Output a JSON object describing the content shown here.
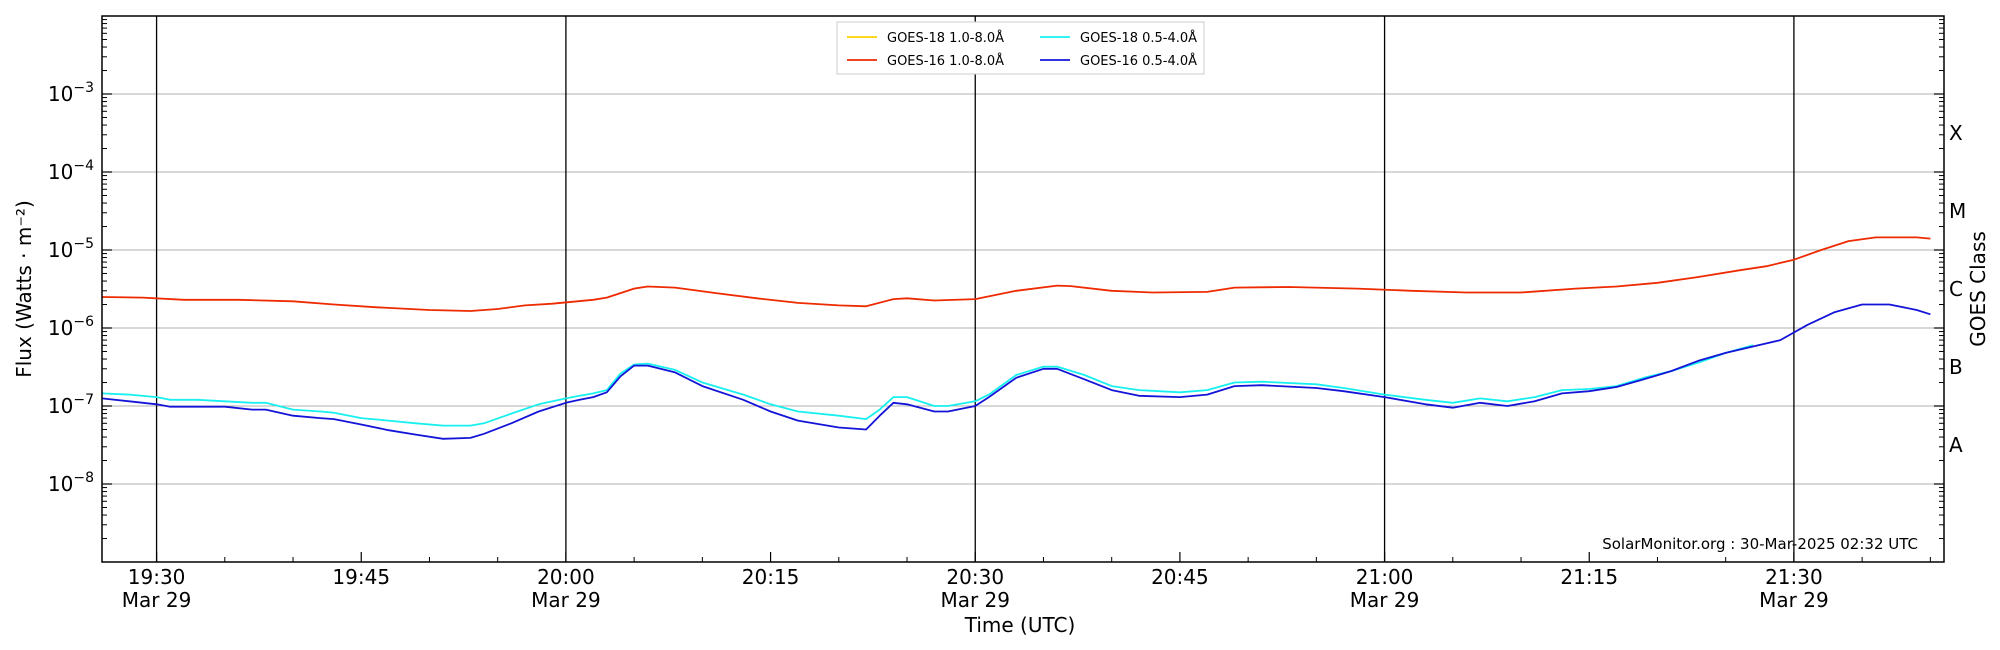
{
  "chart_data": {
    "type": "line",
    "xlabel": "Time (UTC)",
    "ylabel": "Flux (Watts · m⁻²)",
    "right_axis_label": "GOES Class",
    "credit": "SolarMonitor.org : 30-Mar-2025 02:32 UTC",
    "y_scale": "log",
    "ylim": [
      1e-09,
      0.01
    ],
    "xlim": [
      "19:26",
      "21:41"
    ],
    "grid": "horizontal at decades",
    "legend_placement": "top-center",
    "x_ticks": [
      {
        "time": "19:30",
        "label": "19:30",
        "sublabel": "Mar 29"
      },
      {
        "time": "19:45",
        "label": "19:45",
        "sublabel": ""
      },
      {
        "time": "20:00",
        "label": "20:00",
        "sublabel": "Mar 29"
      },
      {
        "time": "20:15",
        "label": "20:15",
        "sublabel": ""
      },
      {
        "time": "20:30",
        "label": "20:30",
        "sublabel": "Mar 29"
      },
      {
        "time": "20:45",
        "label": "20:45",
        "sublabel": ""
      },
      {
        "time": "21:00",
        "label": "21:00",
        "sublabel": "Mar 29"
      },
      {
        "time": "21:15",
        "label": "21:15",
        "sublabel": ""
      },
      {
        "time": "21:30",
        "label": "21:30",
        "sublabel": "Mar 29"
      }
    ],
    "vertical_markers": [
      "19:30",
      "20:00",
      "20:30",
      "21:00",
      "21:30"
    ],
    "y_ticks": [
      {
        "value": 1e-08,
        "base": "10",
        "exp": "−8"
      },
      {
        "value": 1e-07,
        "base": "10",
        "exp": "−7"
      },
      {
        "value": 1e-06,
        "base": "10",
        "exp": "−6"
      },
      {
        "value": 1e-05,
        "base": "10",
        "exp": "−5"
      },
      {
        "value": 0.0001,
        "base": "10",
        "exp": "−4"
      },
      {
        "value": 0.001,
        "base": "10",
        "exp": "−3"
      }
    ],
    "goes_classes": [
      {
        "label": "A",
        "value": 3.16e-08
      },
      {
        "label": "B",
        "value": 3.16e-07
      },
      {
        "label": "C",
        "value": 3.16e-06
      },
      {
        "label": "M",
        "value": 3.16e-05
      },
      {
        "label": "X",
        "value": 0.000316
      }
    ],
    "series": [
      {
        "name": "GOES-18 1.0-8.0Å",
        "color": "#ffd000",
        "points": []
      },
      {
        "name": "GOES-16 1.0-8.0Å",
        "color": "#ee2a00",
        "points": [
          [
            "19:26",
            2.5e-06
          ],
          [
            "19:29",
            2.45e-06
          ],
          [
            "19:32",
            2.3e-06
          ],
          [
            "19:36",
            2.3e-06
          ],
          [
            "19:40",
            2.2e-06
          ],
          [
            "19:43",
            2e-06
          ],
          [
            "19:46",
            1.85e-06
          ],
          [
            "19:50",
            1.7e-06
          ],
          [
            "19:53",
            1.65e-06
          ],
          [
            "19:55",
            1.75e-06
          ],
          [
            "19:57",
            1.95e-06
          ],
          [
            "19:59",
            2.05e-06
          ],
          [
            "20:02",
            2.3e-06
          ],
          [
            "20:03",
            2.45e-06
          ],
          [
            "20:05",
            3.2e-06
          ],
          [
            "20:06",
            3.4e-06
          ],
          [
            "20:08",
            3.3e-06
          ],
          [
            "20:11",
            2.8e-06
          ],
          [
            "20:14",
            2.4e-06
          ],
          [
            "20:17",
            2.1e-06
          ],
          [
            "20:20",
            1.95e-06
          ],
          [
            "20:22",
            1.9e-06
          ],
          [
            "20:24",
            2.35e-06
          ],
          [
            "20:25",
            2.4e-06
          ],
          [
            "20:27",
            2.25e-06
          ],
          [
            "20:30",
            2.35e-06
          ],
          [
            "20:33",
            3e-06
          ],
          [
            "20:36",
            3.5e-06
          ],
          [
            "20:37",
            3.45e-06
          ],
          [
            "20:40",
            3e-06
          ],
          [
            "20:43",
            2.85e-06
          ],
          [
            "20:47",
            2.9e-06
          ],
          [
            "20:49",
            3.3e-06
          ],
          [
            "20:53",
            3.35e-06
          ],
          [
            "20:58",
            3.2e-06
          ],
          [
            "21:02",
            3e-06
          ],
          [
            "21:06",
            2.85e-06
          ],
          [
            "21:10",
            2.85e-06
          ],
          [
            "21:14",
            3.2e-06
          ],
          [
            "21:17",
            3.4e-06
          ],
          [
            "21:20",
            3.8e-06
          ],
          [
            "21:23",
            4.5e-06
          ],
          [
            "21:26",
            5.5e-06
          ],
          [
            "21:28",
            6.2e-06
          ],
          [
            "21:30",
            7.5e-06
          ],
          [
            "21:32",
            1e-05
          ],
          [
            "21:34",
            1.3e-05
          ],
          [
            "21:36",
            1.45e-05
          ],
          [
            "21:39",
            1.45e-05
          ],
          [
            "21:40",
            1.4e-05
          ]
        ]
      },
      {
        "name": "GOES-18 0.5-4.0Å",
        "color": "#18f0f0",
        "points": [
          [
            "19:26",
            1.45e-07
          ],
          [
            "19:28",
            1.4e-07
          ],
          [
            "19:30",
            1.3e-07
          ],
          [
            "19:31",
            1.2e-07
          ],
          [
            "19:33",
            1.2e-07
          ],
          [
            "19:35",
            1.15e-07
          ],
          [
            "19:37",
            1.1e-07
          ],
          [
            "19:38",
            1.1e-07
          ],
          [
            "19:40",
            9e-08
          ],
          [
            "19:42",
            8.5e-08
          ],
          [
            "19:43",
            8.2e-08
          ],
          [
            "19:45",
            7e-08
          ],
          [
            "19:47",
            6.5e-08
          ],
          [
            "19:49",
            6e-08
          ],
          [
            "19:51",
            5.6e-08
          ],
          [
            "19:53",
            5.6e-08
          ],
          [
            "19:54",
            6e-08
          ],
          [
            "19:56",
            8e-08
          ],
          [
            "19:58",
            1.05e-07
          ],
          [
            "20:00",
            1.25e-07
          ],
          [
            "20:01",
            1.35e-07
          ],
          [
            "20:02",
            1.45e-07
          ],
          [
            "20:03",
            1.6e-07
          ],
          [
            "20:04",
            2.6e-07
          ],
          [
            "20:05",
            3.4e-07
          ],
          [
            "20:06",
            3.5e-07
          ],
          [
            "20:08",
            2.9e-07
          ],
          [
            "20:10",
            2e-07
          ],
          [
            "20:13",
            1.4e-07
          ],
          [
            "20:15",
            1.05e-07
          ],
          [
            "20:17",
            8.5e-08
          ],
          [
            "20:20",
            7.5e-08
          ],
          [
            "20:22",
            6.8e-08
          ],
          [
            "20:23",
            9e-08
          ],
          [
            "20:24",
            1.3e-07
          ],
          [
            "20:25",
            1.3e-07
          ],
          [
            "20:27",
            1e-07
          ],
          [
            "20:28",
            1e-07
          ],
          [
            "20:30",
            1.15e-07
          ],
          [
            "20:31",
            1.4e-07
          ],
          [
            "20:33",
            2.5e-07
          ],
          [
            "20:35",
            3.2e-07
          ],
          [
            "20:36",
            3.2e-07
          ],
          [
            "20:38",
            2.5e-07
          ],
          [
            "20:40",
            1.8e-07
          ],
          [
            "20:42",
            1.6e-07
          ],
          [
            "20:45",
            1.5e-07
          ],
          [
            "20:47",
            1.6e-07
          ],
          [
            "20:49",
            2e-07
          ],
          [
            "20:51",
            2.05e-07
          ],
          [
            "20:55",
            1.9e-07
          ],
          [
            "20:57",
            1.7e-07
          ],
          [
            "21:00",
            1.4e-07
          ],
          [
            "21:03",
            1.2e-07
          ],
          [
            "21:05",
            1.1e-07
          ],
          [
            "21:07",
            1.25e-07
          ],
          [
            "21:09",
            1.15e-07
          ],
          [
            "21:11",
            1.3e-07
          ],
          [
            "21:13",
            1.6e-07
          ],
          [
            "21:15",
            1.65e-07
          ],
          [
            "21:17",
            1.8e-07
          ],
          [
            "21:19",
            2.3e-07
          ],
          [
            "21:21",
            2.8e-07
          ],
          [
            "21:23",
            3.6e-07
          ],
          [
            "21:25",
            4.8e-07
          ],
          [
            "21:27",
            6e-07
          ]
        ]
      },
      {
        "name": "GOES-16 0.5-4.0Å",
        "color": "#1414d8",
        "points": [
          [
            "19:26",
            1.25e-07
          ],
          [
            "19:28",
            1.15e-07
          ],
          [
            "19:30",
            1.05e-07
          ],
          [
            "19:31",
            9.8e-08
          ],
          [
            "19:33",
            9.8e-08
          ],
          [
            "19:35",
            9.8e-08
          ],
          [
            "19:37",
            9e-08
          ],
          [
            "19:38",
            9e-08
          ],
          [
            "19:40",
            7.5e-08
          ],
          [
            "19:42",
            7e-08
          ],
          [
            "19:43",
            6.8e-08
          ],
          [
            "19:45",
            5.8e-08
          ],
          [
            "19:47",
            4.9e-08
          ],
          [
            "19:49",
            4.3e-08
          ],
          [
            "19:51",
            3.8e-08
          ],
          [
            "19:53",
            3.9e-08
          ],
          [
            "19:54",
            4.4e-08
          ],
          [
            "19:56",
            6e-08
          ],
          [
            "19:58",
            8.5e-08
          ],
          [
            "20:00",
            1.1e-07
          ],
          [
            "20:01",
            1.2e-07
          ],
          [
            "20:02",
            1.3e-07
          ],
          [
            "20:03",
            1.5e-07
          ],
          [
            "20:04",
            2.4e-07
          ],
          [
            "20:05",
            3.3e-07
          ],
          [
            "20:06",
            3.3e-07
          ],
          [
            "20:08",
            2.7e-07
          ],
          [
            "20:10",
            1.8e-07
          ],
          [
            "20:13",
            1.2e-07
          ],
          [
            "20:15",
            8.5e-08
          ],
          [
            "20:17",
            6.5e-08
          ],
          [
            "20:20",
            5.3e-08
          ],
          [
            "20:22",
            5e-08
          ],
          [
            "20:23",
            7.5e-08
          ],
          [
            "20:24",
            1.1e-07
          ],
          [
            "20:25",
            1.05e-07
          ],
          [
            "20:27",
            8.5e-08
          ],
          [
            "20:28",
            8.5e-08
          ],
          [
            "20:30",
            1e-07
          ],
          [
            "20:31",
            1.3e-07
          ],
          [
            "20:33",
            2.3e-07
          ],
          [
            "20:35",
            3e-07
          ],
          [
            "20:36",
            3e-07
          ],
          [
            "20:38",
            2.2e-07
          ],
          [
            "20:40",
            1.6e-07
          ],
          [
            "20:42",
            1.35e-07
          ],
          [
            "20:45",
            1.3e-07
          ],
          [
            "20:47",
            1.4e-07
          ],
          [
            "20:49",
            1.8e-07
          ],
          [
            "20:51",
            1.85e-07
          ],
          [
            "20:55",
            1.7e-07
          ],
          [
            "20:57",
            1.55e-07
          ],
          [
            "21:00",
            1.3e-07
          ],
          [
            "21:03",
            1.05e-07
          ],
          [
            "21:05",
            9.5e-08
          ],
          [
            "21:07",
            1.1e-07
          ],
          [
            "21:09",
            1e-07
          ],
          [
            "21:11",
            1.15e-07
          ],
          [
            "21:13",
            1.45e-07
          ],
          [
            "21:15",
            1.55e-07
          ],
          [
            "21:17",
            1.75e-07
          ],
          [
            "21:19",
            2.2e-07
          ],
          [
            "21:21",
            2.8e-07
          ],
          [
            "21:23",
            3.8e-07
          ],
          [
            "21:25",
            4.8e-07
          ],
          [
            "21:27",
            5.8e-07
          ],
          [
            "21:29",
            7e-07
          ],
          [
            "21:31",
            1.1e-06
          ],
          [
            "21:33",
            1.6e-06
          ],
          [
            "21:35",
            2e-06
          ],
          [
            "21:37",
            2e-06
          ],
          [
            "21:39",
            1.7e-06
          ],
          [
            "21:40",
            1.5e-06
          ]
        ]
      }
    ]
  }
}
